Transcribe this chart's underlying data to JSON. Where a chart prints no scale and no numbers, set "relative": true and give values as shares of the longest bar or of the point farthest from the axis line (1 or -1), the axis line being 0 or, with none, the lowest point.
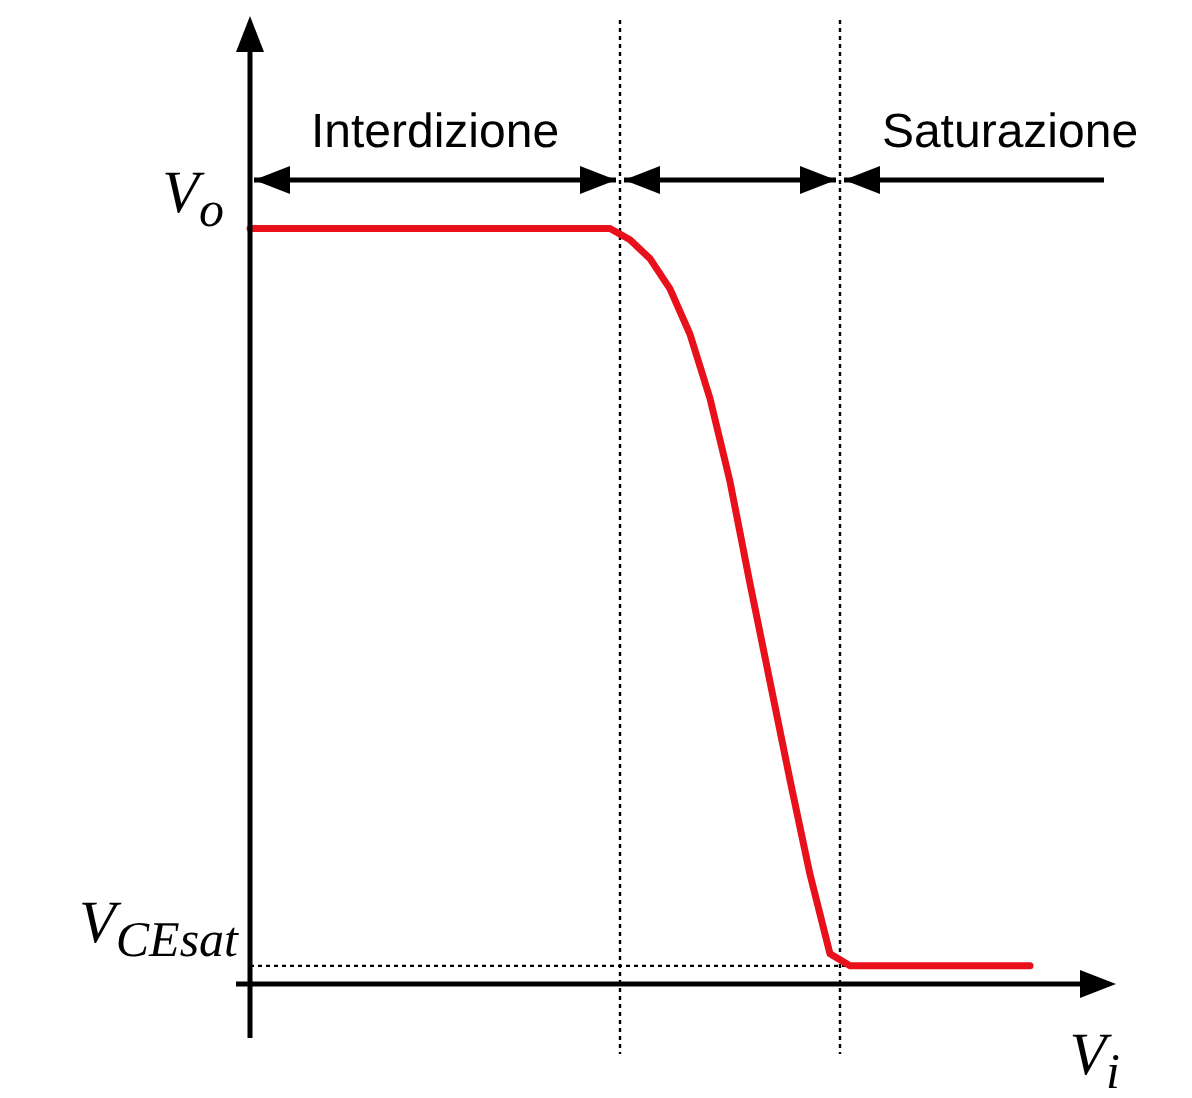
{
  "chart_data": {
    "type": "line",
    "relative": true,
    "xlabel": "V$_{i}$",
    "ylabel": "V$_{o}$",
    "grid": false,
    "marker": "none",
    "line_style": "solid",
    "annotations": [
      "Interdizione",
      "Saturazione",
      "V$_{CEsat}$"
    ],
    "categories": [
      null,
      null,
      null,
      null,
      null,
      null,
      null,
      null,
      null,
      null,
      null,
      null,
      null,
      null,
      null,
      null,
      null,
      null,
      null,
      null,
      null,
      null,
      null,
      null,
      null,
      null,
      null,
      null,
      null,
      null,
      null,
      null,
      null,
      null,
      null,
      null,
      null,
      null,
      null,
      null
    ],
    "series": [
      {
        "color": "#e8101a",
        "values": [
          1,
          1,
          1,
          1,
          1,
          1,
          1,
          1,
          1,
          1,
          1,
          1,
          1,
          1,
          1,
          1,
          1,
          1,
          1,
          0.985,
          0.96,
          0.92,
          0.86,
          0.775,
          0.665,
          0.53,
          0.4,
          0.27,
          0.145,
          0.04,
          0.024,
          0.024,
          0.024,
          0.024,
          0.024,
          0.024,
          0.024,
          0.024,
          0.024,
          0.024
        ]
      }
    ]
  }
}
